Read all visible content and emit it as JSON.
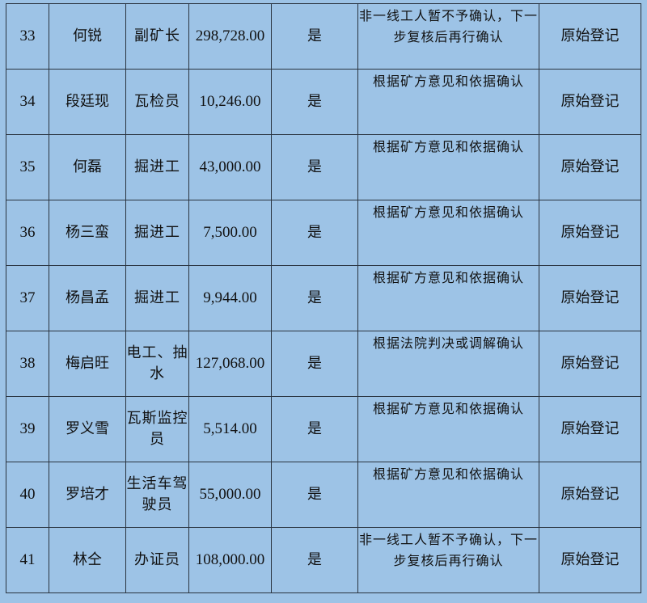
{
  "rows": [
    {
      "no": "33",
      "name": "何锐",
      "job": "副矿长",
      "amount": "298,728.00",
      "confirmed": "是",
      "note": "非一线工人暂不予确认，下一步复核后再行确认",
      "source": "原始登记"
    },
    {
      "no": "34",
      "name": "段廷现",
      "job": "瓦检员",
      "amount": "10,246.00",
      "confirmed": "是",
      "note": "根据矿方意见和依据确认",
      "source": "原始登记"
    },
    {
      "no": "35",
      "name": "何磊",
      "job": "掘进工",
      "amount": "43,000.00",
      "confirmed": "是",
      "note": "根据矿方意见和依据确认",
      "source": "原始登记"
    },
    {
      "no": "36",
      "name": "杨三蛮",
      "job": "掘进工",
      "amount": "7,500.00",
      "confirmed": "是",
      "note": "根据矿方意见和依据确认",
      "source": "原始登记"
    },
    {
      "no": "37",
      "name": "杨昌孟",
      "job": "掘进工",
      "amount": "9,944.00",
      "confirmed": "是",
      "note": "根据矿方意见和依据确认",
      "source": "原始登记"
    },
    {
      "no": "38",
      "name": "梅启旺",
      "job": "电工、抽水",
      "amount": "127,068.00",
      "confirmed": "是",
      "note": "根据法院判决或调解确认",
      "source": "原始登记"
    },
    {
      "no": "39",
      "name": "罗义雪",
      "job": "瓦斯监控员",
      "amount": "5,514.00",
      "confirmed": "是",
      "note": "根据矿方意见和依据确认",
      "source": "原始登记"
    },
    {
      "no": "40",
      "name": "罗培才",
      "job": "生活车驾驶员",
      "amount": "55,000.00",
      "confirmed": "是",
      "note": "根据矿方意见和依据确认",
      "source": "原始登记"
    },
    {
      "no": "41",
      "name": "林仝",
      "job": "办证员",
      "amount": "108,000.00",
      "confirmed": "是",
      "note": "非一线工人暂不予确认，下一步复核后再行确认",
      "source": "原始登记"
    }
  ]
}
